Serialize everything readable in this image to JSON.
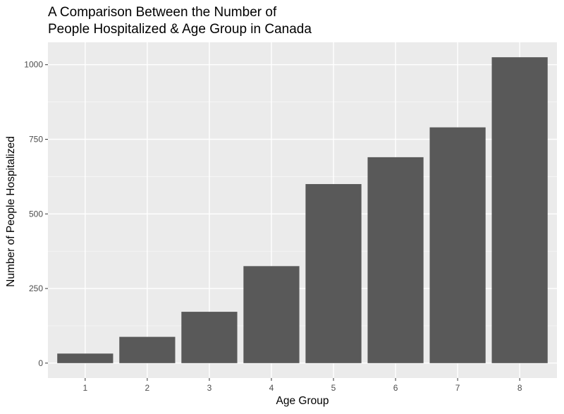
{
  "chart_data": {
    "type": "bar",
    "title_lines": [
      "A Comparison Between the Number of",
      "People Hospitalized & Age Group in Canada"
    ],
    "xlabel": "Age Group",
    "ylabel": "Number of People Hospitalized",
    "categories": [
      "1",
      "2",
      "3",
      "4",
      "5",
      "6",
      "7",
      "8"
    ],
    "values": [
      32,
      88,
      172,
      325,
      600,
      690,
      790,
      1025
    ],
    "ylim": [
      -50,
      1075
    ],
    "yticks": [
      0,
      250,
      500,
      750,
      1000
    ],
    "grid": true,
    "legend": "none",
    "colors": {
      "bar": "#595959",
      "panel": "#ebebeb",
      "grid_major": "#ffffff",
      "tick_text": "#4d4d4d"
    }
  }
}
